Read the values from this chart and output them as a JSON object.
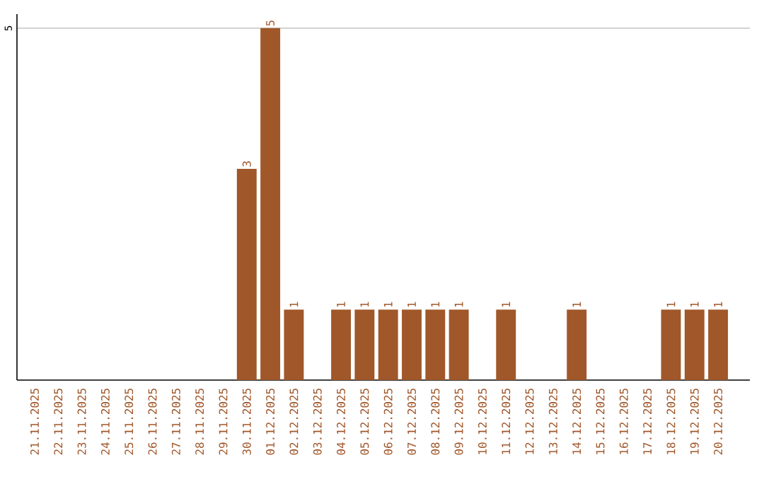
{
  "chart_data": {
    "type": "bar",
    "categories": [
      "21.11.2025",
      "22.11.2025",
      "23.11.2025",
      "24.11.2025",
      "25.11.2025",
      "26.11.2025",
      "27.11.2025",
      "28.11.2025",
      "29.11.2025",
      "30.11.2025",
      "01.12.2025",
      "02.12.2025",
      "03.12.2025",
      "04.12.2025",
      "05.12.2025",
      "06.12.2025",
      "07.12.2025",
      "08.12.2025",
      "09.12.2025",
      "10.12.2025",
      "11.12.2025",
      "12.12.2025",
      "13.12.2025",
      "14.12.2025",
      "15.12.2025",
      "16.12.2025",
      "17.12.2025",
      "18.12.2025",
      "19.12.2025",
      "20.12.2025"
    ],
    "values": [
      0,
      0,
      0,
      0,
      0,
      0,
      0,
      0,
      0,
      3,
      5,
      1,
      0,
      1,
      1,
      1,
      1,
      1,
      1,
      0,
      1,
      0,
      0,
      1,
      0,
      0,
      0,
      1,
      1,
      1
    ],
    "value_labels": [
      null,
      null,
      null,
      null,
      null,
      null,
      null,
      null,
      null,
      "3",
      "5",
      "1",
      null,
      "1",
      "1",
      "1",
      "1",
      "1",
      "1",
      null,
      "1",
      null,
      null,
      "1",
      null,
      null,
      null,
      "1",
      "1",
      "1"
    ],
    "color": "#a0572a",
    "ylim": [
      0,
      5.2
    ],
    "yticks": [
      5
    ],
    "grid": "y"
  }
}
